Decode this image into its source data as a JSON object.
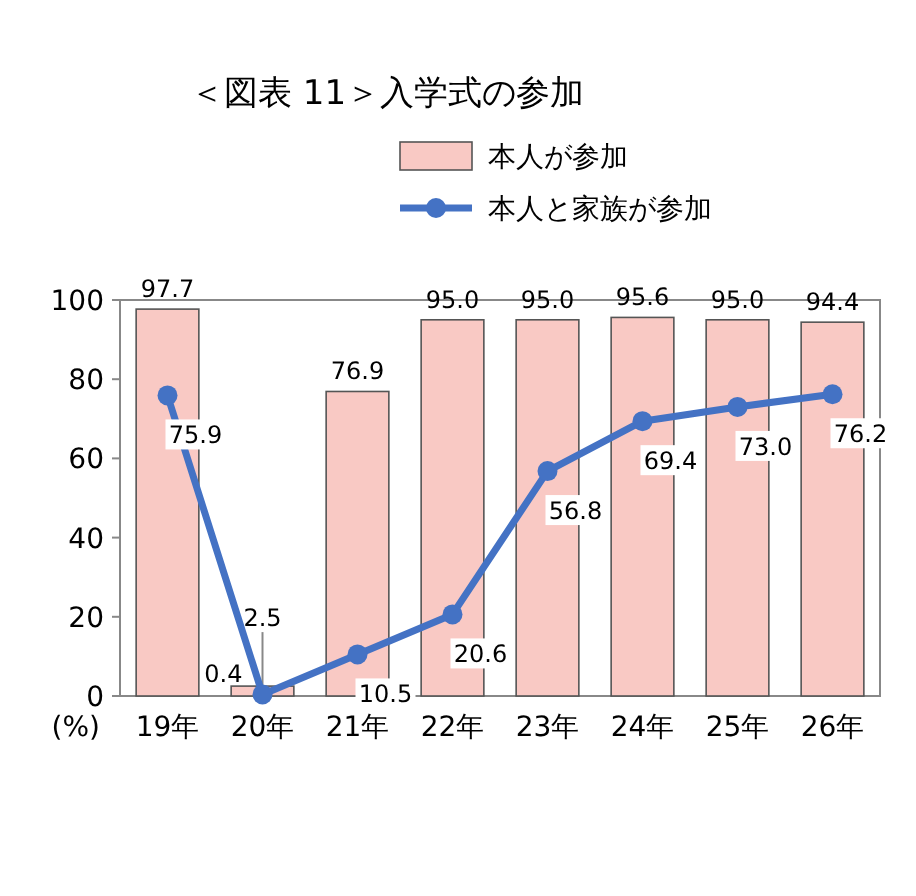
{
  "chart_data": {
    "type": "bar",
    "title": "＜図表 11＞入学式の参加",
    "categories": [
      "19年",
      "20年",
      "21年",
      "22年",
      "23年",
      "24年",
      "25年",
      "26年"
    ],
    "series": [
      {
        "name": "本人が参加",
        "color": "#f9c9c4",
        "values": [
          97.7,
          2.5,
          76.9,
          95.0,
          95.0,
          95.6,
          95.0,
          94.4
        ],
        "value_labels": [
          "97.7",
          "2.5",
          "76.9",
          "95.0",
          "95.0",
          "95.6",
          "95.0",
          "94.4"
        ]
      },
      {
        "name": "本人と家族が参加",
        "type": "line",
        "color": "#4472c4",
        "values": [
          75.9,
          0.4,
          10.5,
          20.6,
          56.8,
          69.4,
          73.0,
          76.2
        ],
        "value_labels": [
          "75.9",
          "0.4",
          "10.5",
          "20.6",
          "56.8",
          "69.4",
          "73.0",
          "76.2"
        ]
      }
    ],
    "ylim": [
      0,
      100
    ],
    "yticks": [
      0,
      20,
      40,
      60,
      80,
      100
    ],
    "annotations": [
      "(%)"
    ],
    "legend": "top right",
    "marker": "circle",
    "grid": false
  }
}
